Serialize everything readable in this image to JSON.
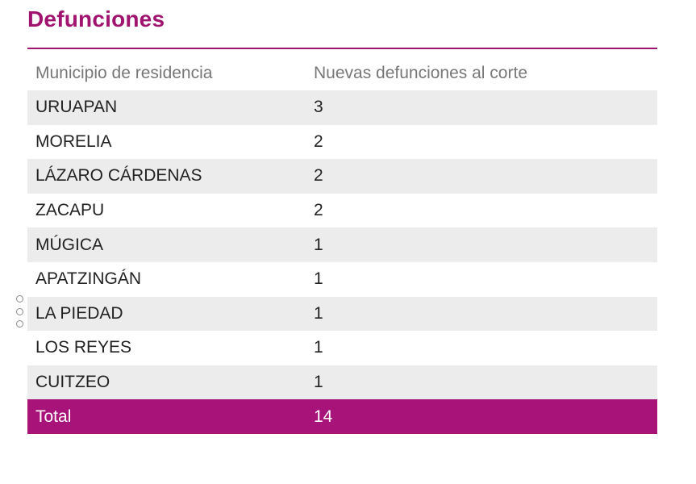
{
  "title": "Defunciones",
  "table": {
    "headers": {
      "municipio": "Municipio de residencia",
      "defunciones": "Nuevas defunciones al corte"
    },
    "rows": [
      {
        "municipio": "URUAPAN",
        "defunciones": "3"
      },
      {
        "municipio": "MORELIA",
        "defunciones": "2"
      },
      {
        "municipio": "LÁZARO CÁRDENAS",
        "defunciones": "2"
      },
      {
        "municipio": "ZACAPU",
        "defunciones": "2"
      },
      {
        "municipio": "MÚGICA",
        "defunciones": "1"
      },
      {
        "municipio": "APATZINGÁN",
        "defunciones": "1"
      },
      {
        "municipio": "LA PIEDAD",
        "defunciones": "1"
      },
      {
        "municipio": "LOS REYES",
        "defunciones": "1"
      },
      {
        "municipio": "CUITZEO",
        "defunciones": "1"
      }
    ],
    "total": {
      "label": "Total",
      "value": "14"
    }
  },
  "colors": {
    "accent": "#a0136f",
    "total_row": "#a8137a",
    "stripe": "#ececec"
  },
  "icons": {
    "drag_handle": "drag-handle-icon"
  }
}
